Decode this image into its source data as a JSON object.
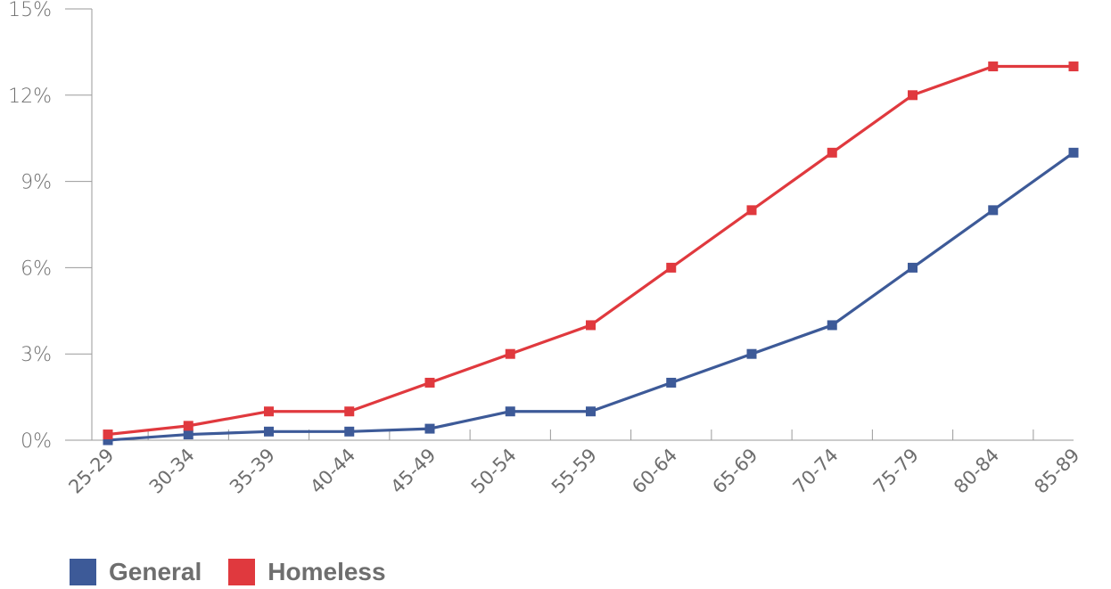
{
  "chart_data": {
    "type": "line",
    "title": "",
    "xlabel": "",
    "ylabel": "",
    "categories": [
      "25-29",
      "30-34",
      "35-39",
      "40-44",
      "45-49",
      "50-54",
      "55-59",
      "60-64",
      "65-69",
      "70-74",
      "75-79",
      "80-84",
      "85-89"
    ],
    "series": [
      {
        "name": "General",
        "color": "#3d5a98",
        "values": [
          0.0,
          0.2,
          0.3,
          0.3,
          0.4,
          1.0,
          1.0,
          2.0,
          3.0,
          4.0,
          6.0,
          8.0,
          10.0
        ]
      },
      {
        "name": "Homeless",
        "color": "#e0393e",
        "values": [
          0.2,
          0.5,
          1.0,
          1.0,
          2.0,
          3.0,
          4.0,
          6.0,
          8.0,
          10.0,
          12.0,
          13.0,
          13.0
        ]
      }
    ],
    "ylim": [
      0,
      15
    ],
    "y_ticks": [
      "0%",
      "3%",
      "6%",
      "9%",
      "12%",
      "15%"
    ],
    "grid": false,
    "legend_position": "bottom-left"
  }
}
